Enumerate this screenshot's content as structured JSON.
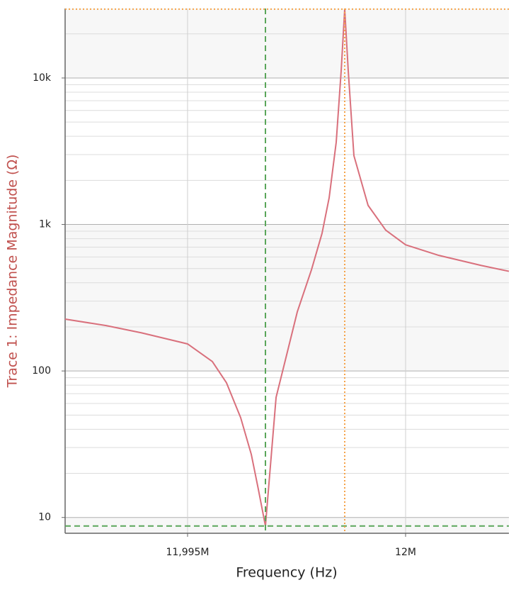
{
  "chart_data": {
    "type": "line",
    "x_label": "Frequency (Hz)",
    "y_label": "Trace 1: Impedance Magnitude (Ω)",
    "y_label_color": "#c0504d",
    "log_y": true,
    "grid": true,
    "xlim": [
      11992192,
      12002370
    ],
    "ylim": [
      7.8,
      29800
    ],
    "xticks": [
      {
        "value": 11995000,
        "label": "11,995M"
      },
      {
        "value": 12000000,
        "label": "12M"
      }
    ],
    "yticks": [
      10,
      100,
      {
        "value": 1000,
        "label": "1k"
      },
      {
        "value": 10000,
        "label": "10k"
      }
    ],
    "y_minor_ticks": [
      20,
      30,
      40,
      50,
      60,
      70,
      80,
      90,
      200,
      300,
      400,
      500,
      600,
      700,
      800,
      900,
      2000,
      3000,
      4000,
      5000,
      6000,
      7000,
      8000,
      9000,
      20000
    ],
    "series": [
      {
        "name": "Trace 1",
        "color": "#d9707c",
        "x": [
          11992192,
          11993133,
          11993945,
          11995000,
          11995568,
          11995893,
          11996218,
          11996461,
          11996623,
          11996786,
          11997030,
          11997273,
          11997516,
          11997841,
          11998084,
          11998247,
          11998409,
          11998523,
          11998604,
          11998685,
          11998815,
          11999140,
          11999545,
          12000000,
          12000763,
          12001737,
          12002370
        ],
        "values": [
          226,
          204,
          182,
          153,
          116,
          83,
          48,
          27,
          15.6,
          8.75,
          66,
          129,
          253,
          490,
          870,
          1520,
          3640,
          11200,
          29500,
          11200,
          2950,
          1350,
          915,
          727,
          615,
          525,
          479
        ]
      }
    ],
    "cursors": [
      {
        "color": "#5aa65a",
        "dash": "8 5",
        "x": 11996786,
        "y": 8.75
      },
      {
        "color": "#f5a34a",
        "dash": "2 3",
        "x": 11998604,
        "y": 29500
      }
    ]
  }
}
